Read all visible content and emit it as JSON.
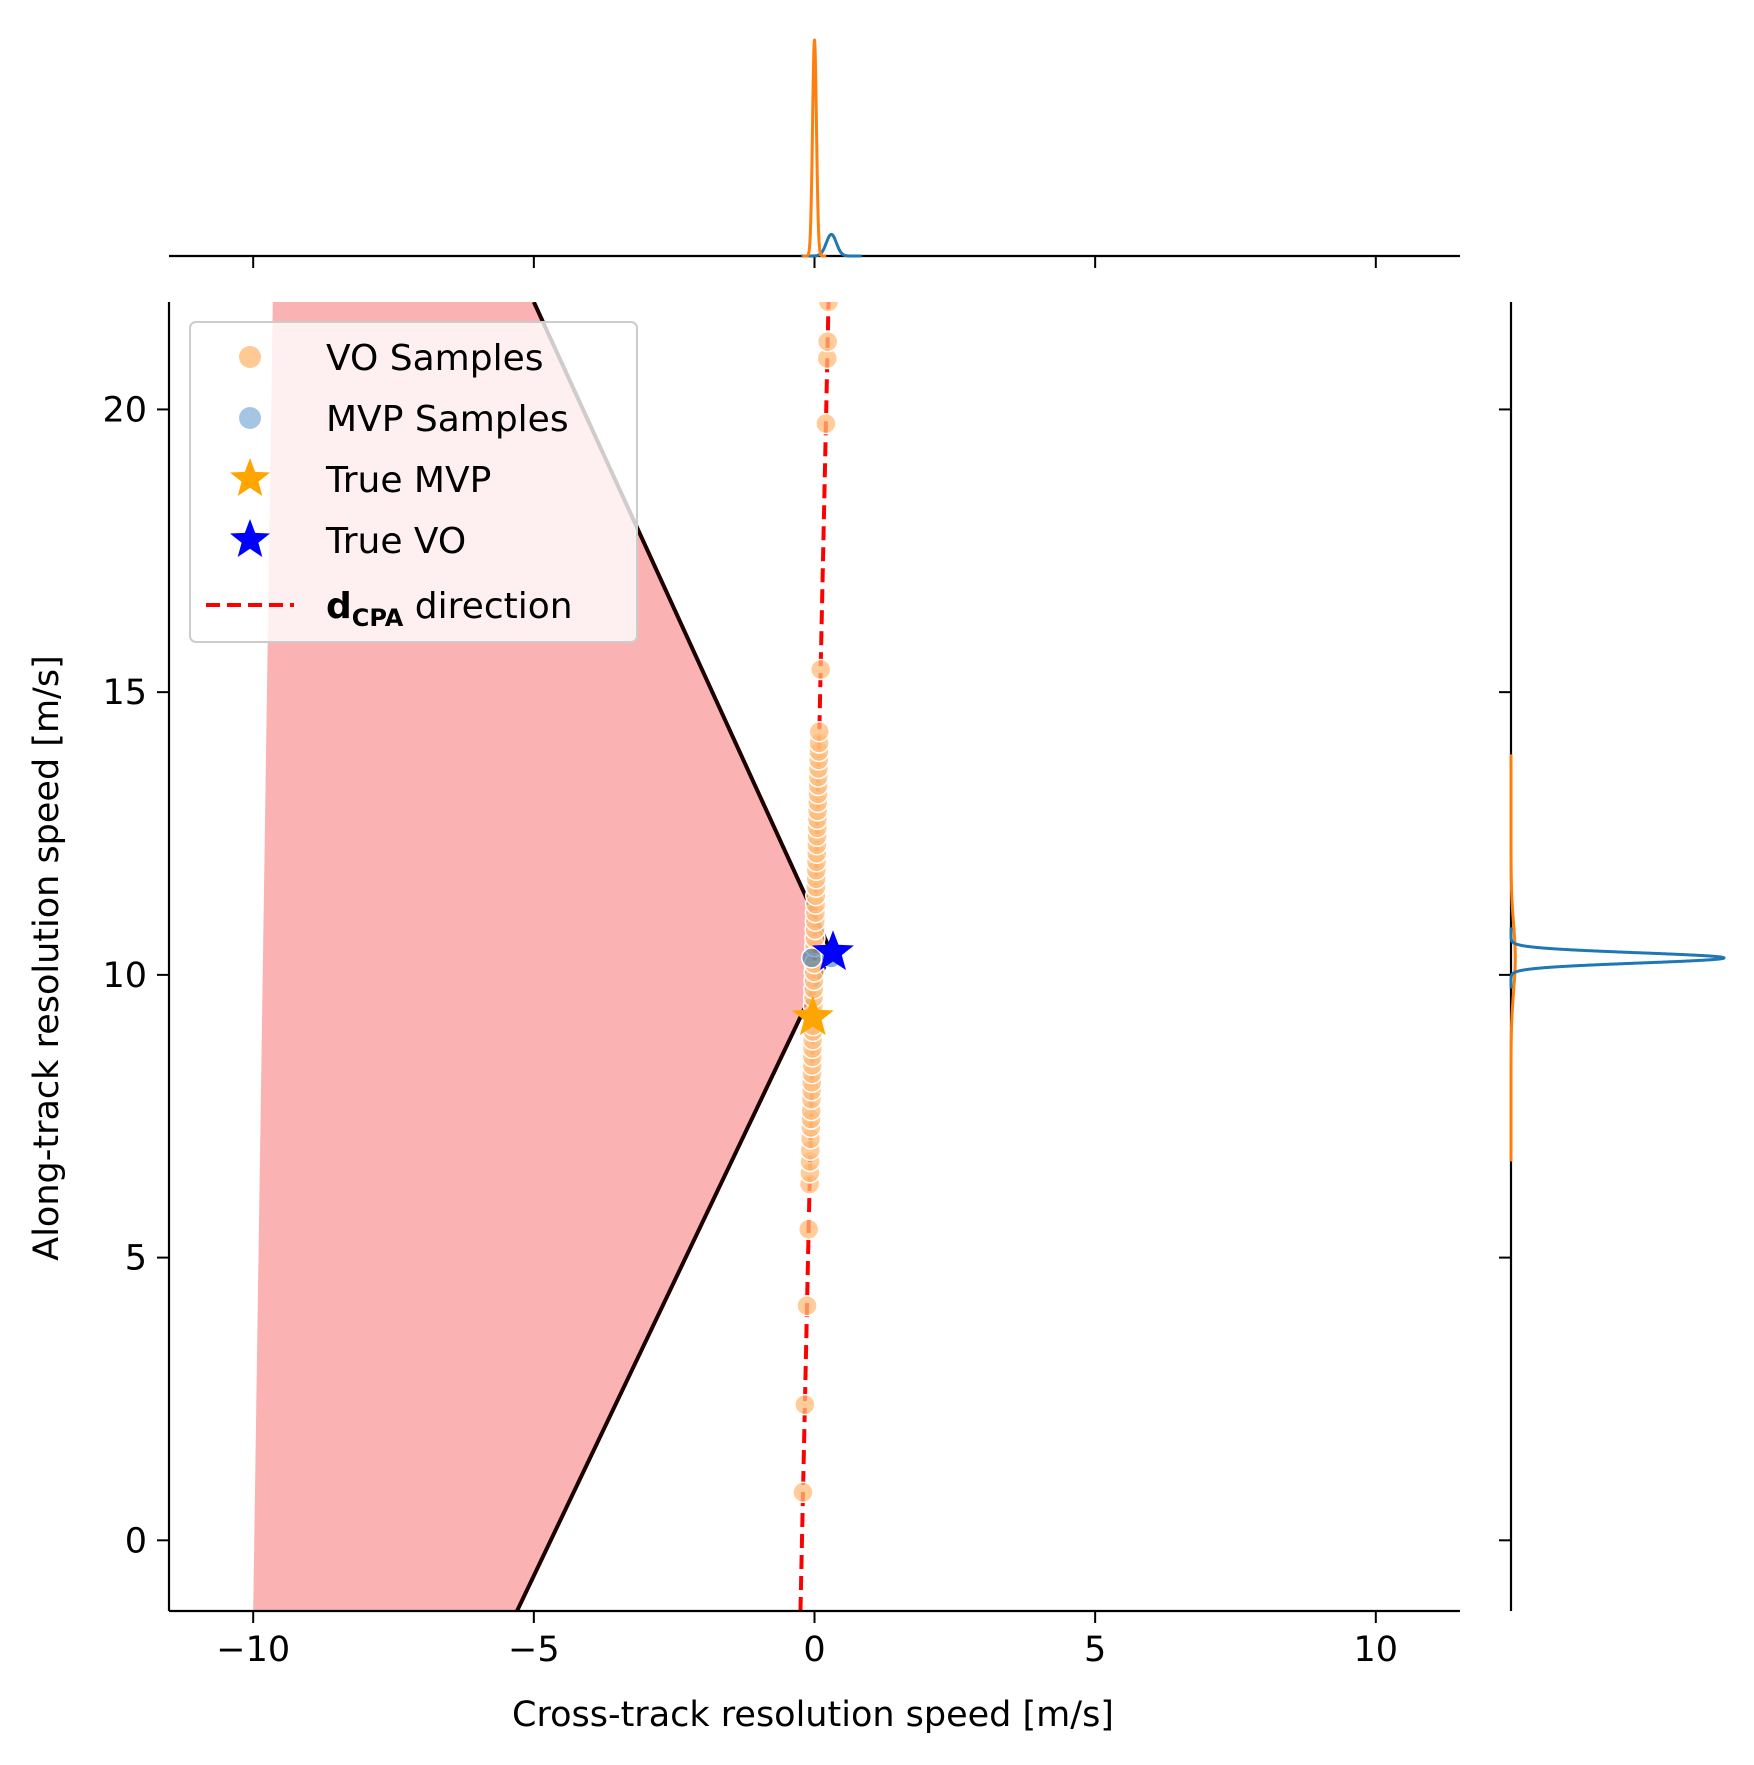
{
  "chart_data": {
    "type": "scatter",
    "title": "",
    "xlabel": "Cross-track resolution speed [m/s]",
    "ylabel": "Along-track resolution speed [m/s]",
    "xlim": [
      -11.5,
      11.5
    ],
    "ylim": [
      -1.25,
      21.9
    ],
    "xticks": [
      -10,
      -5,
      0,
      5,
      10
    ],
    "xtick_labels": [
      "−10",
      "−5",
      "0",
      "5",
      "10"
    ],
    "yticks": [
      0,
      5,
      10,
      15,
      20
    ],
    "ytick_labels": [
      "0",
      "5",
      "10",
      "15",
      "20"
    ],
    "grid": false,
    "legend_position": "upper-left",
    "legend": [
      {
        "key": "vo_samples",
        "label": "VO Samples",
        "marker": "circle",
        "color": "#ffbb78"
      },
      {
        "key": "mvp_samples",
        "label": "MVP Samples",
        "marker": "circle",
        "color": "#8fb8dc"
      },
      {
        "key": "true_mvp",
        "label": "True MVP",
        "marker": "star",
        "color": "#ffa500"
      },
      {
        "key": "true_vo",
        "label": "True VO",
        "marker": "star",
        "color": "#0000ff"
      },
      {
        "key": "dcpa",
        "label_main": "d",
        "label_sub": "CPA",
        "label_rest": " direction",
        "marker": "dashed-line",
        "color": "#ff0000"
      }
    ],
    "colors": {
      "vo_samples": "#ffbb78",
      "mvp_samples": "#1f77b4",
      "true_mvp": "#ffa500",
      "true_vo": "#0000ff",
      "dcpa": "#ff0000",
      "velocity_obstacle_fill": "#fbb2b2",
      "vo_boundary": "#1a0000",
      "kde_vo": "#ff7f0e",
      "kde_mvp": "#1f77b4"
    },
    "velocity_obstacle": {
      "polygon": [
        [
          -9.65,
          21.9
        ],
        [
          -5.0,
          21.9
        ],
        [
          0.3,
          10.4
        ],
        [
          -5.3,
          -1.25
        ],
        [
          -10.0,
          -1.25
        ]
      ],
      "upper_boundary": [
        [
          -5.0,
          21.9
        ],
        [
          0.3,
          10.4
        ]
      ],
      "lower_boundary": [
        [
          0.3,
          10.4
        ],
        [
          -5.3,
          -1.25
        ]
      ]
    },
    "dcpa_line": [
      [
        -0.25,
        -1.25
      ],
      [
        0.25,
        21.9
      ]
    ],
    "true_mvp": {
      "x": -0.03,
      "y": 9.25
    },
    "true_vo": {
      "x": 0.33,
      "y": 10.4
    },
    "vo_samples_y": [
      0.85,
      2.4,
      4.15,
      5.5,
      6.3,
      6.5,
      6.7,
      6.9,
      7.1,
      7.3,
      7.45,
      7.6,
      7.8,
      7.95,
      8.1,
      8.25,
      8.4,
      8.55,
      8.7,
      8.85,
      9.0,
      9.1,
      9.3,
      9.45,
      9.6,
      9.75,
      9.9,
      10.05,
      10.2,
      10.5,
      10.65,
      10.8,
      10.95,
      11.1,
      11.25,
      11.4,
      11.55,
      11.7,
      11.85,
      12.0,
      12.15,
      12.3,
      12.45,
      12.6,
      12.75,
      12.9,
      13.05,
      13.2,
      13.35,
      13.5,
      13.65,
      13.8,
      13.95,
      14.1,
      14.3,
      15.4,
      19.75,
      20.9,
      21.2,
      21.9
    ],
    "mvp_samples": [
      [
        -0.05,
        10.3
      ],
      [
        0.3,
        10.3
      ]
    ],
    "kde_x": {
      "vo": {
        "center": 0.0,
        "width": 0.035,
        "peak": 1.0
      },
      "mvp": {
        "center": 0.3,
        "width": 0.09,
        "peak": 0.1
      }
    },
    "kde_y": {
      "vo": {
        "center": 10.3,
        "width": 0.6,
        "peak": 0.02
      },
      "mvp": {
        "center": 10.3,
        "width": 0.09,
        "peak": 1.0
      }
    }
  }
}
